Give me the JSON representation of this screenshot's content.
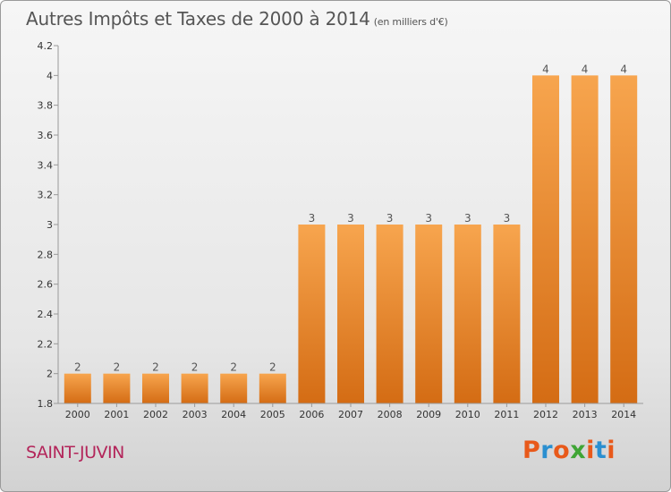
{
  "header": {
    "title": "Autres Impôts et Taxes de 2000 à 2014",
    "unit": "(en milliers d'€)"
  },
  "footer": {
    "commune": "SAINT-JUVIN",
    "logo_text": "Proxiti"
  },
  "colors": {
    "bar_light": "#f7a54e",
    "bar_dark": "#d46c14",
    "axis": "#999999",
    "tick_text": "#333333",
    "label_text": "#555555",
    "commune": "#b3255a",
    "logo": [
      "#e8591a",
      "#2a8fd0",
      "#e8591a",
      "#3fa535",
      "#e8591a",
      "#2a8fd0",
      "#e8591a"
    ]
  },
  "chart_data": {
    "type": "bar",
    "title": "Autres Impôts et Taxes de 2000 à 2014",
    "subtitle": "(en milliers d'€)",
    "categories": [
      "2000",
      "2001",
      "2002",
      "2003",
      "2004",
      "2005",
      "2006",
      "2007",
      "2008",
      "2009",
      "2010",
      "2011",
      "2012",
      "2013",
      "2014"
    ],
    "values": [
      2,
      2,
      2,
      2,
      2,
      2,
      3,
      3,
      3,
      3,
      3,
      3,
      4,
      4,
      4
    ],
    "data_labels": [
      "2",
      "2",
      "2",
      "2",
      "2",
      "2",
      "3",
      "3",
      "3",
      "3",
      "3",
      "3",
      "4",
      "4",
      "4"
    ],
    "ylim": [
      1.8,
      4.2
    ],
    "yticks": [
      1.8,
      2,
      2.2,
      2.4,
      2.6,
      2.8,
      3,
      3.2,
      3.4,
      3.6,
      3.8,
      4,
      4.2
    ],
    "ytick_labels": [
      "1.8",
      "2",
      "2.2",
      "2.4",
      "2.6",
      "2.8",
      "3",
      "3.2",
      "3.4",
      "3.6",
      "3.8",
      "4",
      "4.2"
    ],
    "xlabel": "",
    "ylabel": "",
    "grid": false,
    "legend": false
  }
}
